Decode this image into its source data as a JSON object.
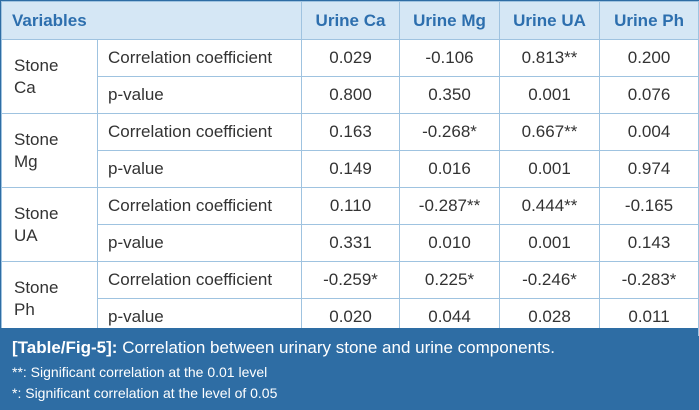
{
  "table": {
    "header": {
      "variables": "Variables",
      "columns": [
        "Urine Ca",
        "Urine Mg",
        "Urine UA",
        "Urine Ph"
      ]
    },
    "groups": [
      {
        "label_line1": "Stone",
        "label_line2": "Ca",
        "rows": [
          {
            "stat": "Correlation coefficient",
            "values": [
              "0.029",
              "-0.106",
              "0.813**",
              "0.200"
            ]
          },
          {
            "stat": "p-value",
            "values": [
              "0.800",
              "0.350",
              "0.001",
              "0.076"
            ]
          }
        ]
      },
      {
        "label_line1": "Stone",
        "label_line2": "Mg",
        "rows": [
          {
            "stat": "Correlation coefficient",
            "values": [
              "0.163",
              "-0.268*",
              "0.667**",
              "0.004"
            ]
          },
          {
            "stat": "p-value",
            "values": [
              "0.149",
              "0.016",
              "0.001",
              "0.974"
            ]
          }
        ]
      },
      {
        "label_line1": "Stone",
        "label_line2": "UA",
        "rows": [
          {
            "stat": "Correlation coefficient",
            "values": [
              "0.110",
              "-0.287**",
              "0.444**",
              "-0.165"
            ]
          },
          {
            "stat": "p-value",
            "values": [
              "0.331",
              "0.010",
              "0.001",
              "0.143"
            ]
          }
        ]
      },
      {
        "label_line1": "Stone",
        "label_line2": "Ph",
        "rows": [
          {
            "stat": "Correlation coefficient",
            "values": [
              "-0.259*",
              "0.225*",
              "-0.246*",
              "-0.283*"
            ]
          },
          {
            "stat": "p-value",
            "values": [
              "0.020",
              "0.044",
              "0.028",
              "0.011"
            ]
          }
        ]
      }
    ]
  },
  "caption": {
    "tag": "[Table/Fig-5]:",
    "title": "Correlation between urinary stone and urine components.",
    "note1": "**: Significant correlation at the 0.01 level",
    "note2": "*: Significant correlation at the level of 0.05"
  },
  "colors": {
    "header_bg": "#d5e7f5",
    "header_text": "#2d6fae",
    "caption_bg": "#2e6da4",
    "border": "#9fc3e0"
  }
}
